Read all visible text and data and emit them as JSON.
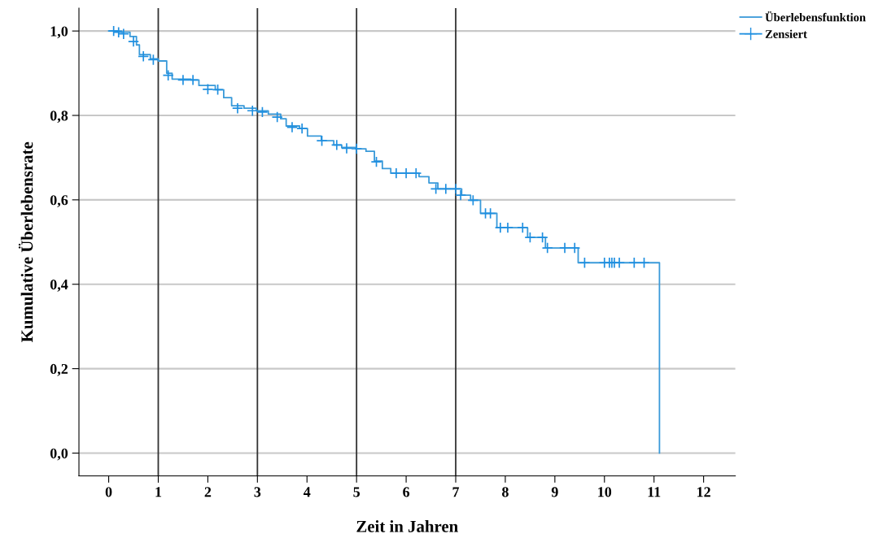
{
  "chart_data": {
    "type": "step",
    "xlabel": "Zeit in Jahren",
    "ylabel": "Kumulative Überlebensrate",
    "xlim": [
      -0.6,
      12.64
    ],
    "ylim": [
      -0.054,
      1.054
    ],
    "xticks": [
      0,
      1,
      2,
      3,
      4,
      5,
      6,
      7,
      8,
      9,
      10,
      11,
      12
    ],
    "yticks": [
      {
        "value": 0,
        "label": "0,0"
      },
      {
        "value": 0.2,
        "label": "0,2"
      },
      {
        "value": 0.4,
        "label": "0,4"
      },
      {
        "value": 0.6,
        "label": "0,6"
      },
      {
        "value": 0.8,
        "label": "0,8"
      },
      {
        "value": 1.0,
        "label": "1,0"
      }
    ],
    "grid": "y",
    "legend": "top right",
    "ref_lines": [
      {
        "axis": "x",
        "value": 1,
        "color": "#333333"
      },
      {
        "axis": "x",
        "value": 3,
        "color": "#333333"
      },
      {
        "axis": "x",
        "value": 5,
        "color": "#333333"
      },
      {
        "axis": "x",
        "value": 7,
        "color": "#333333"
      }
    ],
    "series": [
      {
        "name": "Überlebensfunktion",
        "color": "#3a9ad9",
        "marker": "none",
        "line_style": "solid",
        "x": [
          0,
          0.26,
          0.43,
          0.56,
          0.62,
          0.84,
          1.0,
          1.17,
          1.28,
          1.66,
          1.82,
          2.15,
          2.32,
          2.48,
          2.73,
          2.98,
          3.22,
          3.47,
          3.58,
          3.85,
          4.01,
          4.29,
          4.54,
          4.7,
          4.98,
          5.19,
          5.36,
          5.52,
          5.69,
          6.1,
          6.26,
          6.46,
          6.64,
          7.0,
          7.12,
          7.3,
          7.5,
          7.78,
          7.83,
          8.4,
          8.45,
          8.78,
          8.81,
          9.44,
          9.47,
          11.11,
          11.11
        ],
        "values": [
          1.0,
          0.997,
          0.987,
          0.967,
          0.944,
          0.934,
          0.929,
          0.9,
          0.886,
          0.884,
          0.871,
          0.861,
          0.842,
          0.823,
          0.817,
          0.811,
          0.803,
          0.792,
          0.775,
          0.769,
          0.751,
          0.74,
          0.73,
          0.724,
          0.721,
          0.715,
          0.692,
          0.674,
          0.663,
          0.663,
          0.655,
          0.64,
          0.626,
          0.626,
          0.611,
          0.599,
          0.568,
          0.568,
          0.534,
          0.534,
          0.511,
          0.511,
          0.486,
          0.486,
          0.451,
          0.451,
          0.0
        ]
      },
      {
        "name": "Zensiert",
        "type": "scatter",
        "color": "#1f8fe0",
        "marker": "cross",
        "x": [
          0.1,
          0.2,
          0.3,
          0.5,
          0.7,
          0.9,
          1.2,
          1.5,
          1.7,
          2.0,
          2.2,
          2.6,
          2.9,
          3.1,
          3.4,
          3.7,
          3.9,
          4.3,
          4.6,
          4.8,
          5.0,
          5.4,
          5.8,
          6.0,
          6.2,
          6.6,
          6.8,
          7.0,
          7.1,
          7.35,
          7.6,
          7.7,
          7.9,
          8.05,
          8.35,
          8.5,
          8.75,
          8.85,
          9.2,
          9.4,
          9.6,
          10.0,
          10.1,
          10.15,
          10.2,
          10.3,
          10.6,
          10.8
        ],
        "values": [
          1.0,
          0.997,
          0.993,
          0.975,
          0.94,
          0.932,
          0.895,
          0.884,
          0.884,
          0.862,
          0.861,
          0.817,
          0.811,
          0.808,
          0.796,
          0.772,
          0.769,
          0.74,
          0.73,
          0.722,
          0.721,
          0.69,
          0.663,
          0.663,
          0.663,
          0.626,
          0.626,
          0.626,
          0.611,
          0.599,
          0.568,
          0.568,
          0.534,
          0.534,
          0.534,
          0.511,
          0.511,
          0.486,
          0.486,
          0.486,
          0.451,
          0.451,
          0.451,
          0.451,
          0.451,
          0.451,
          0.451,
          0.451
        ]
      }
    ]
  }
}
